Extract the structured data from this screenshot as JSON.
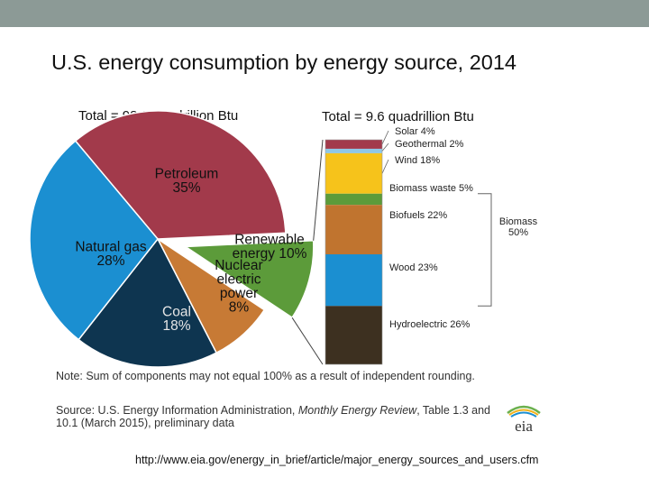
{
  "title": "U.S. energy consumption by energy source, 2014",
  "chart_data": [
    {
      "type": "pie",
      "title": "Total = 98.3 quadrillion Btu",
      "slices": [
        {
          "label_line1": "Petroleum",
          "label_line2": "",
          "label_line3": "",
          "pct_label": "35%",
          "value": 35,
          "color": "#a23a4b"
        },
        {
          "label_line1": "Renewable",
          "label_line2": "energy 10%",
          "label_line3": "",
          "pct_label": "",
          "value": 10,
          "color": "#5c9b3a",
          "exploded": true
        },
        {
          "label_line1": "Nuclear",
          "label_line2": "electric",
          "label_line3": "power",
          "pct_label": "8%",
          "value": 8,
          "color": "#c77a35"
        },
        {
          "label_line1": "Coal",
          "label_line2": "",
          "label_line3": "",
          "pct_label": "18%",
          "value": 18,
          "color": "#0e3550"
        },
        {
          "label_line1": "Natural gas",
          "label_line2": "",
          "label_line3": "",
          "pct_label": "28%",
          "value": 28,
          "color": "#1b8fd1"
        }
      ]
    },
    {
      "type": "bar",
      "stacked": true,
      "title": "Total = 9.6 quadrillion Btu",
      "segments": [
        {
          "label": "Solar 4%",
          "value": 4,
          "color": "#a23a4b"
        },
        {
          "label": "Geothermal 2%",
          "value": 2,
          "color": "#8fc7e6"
        },
        {
          "label": "Wind 18%",
          "value": 18,
          "color": "#f6c31b"
        },
        {
          "label": "Biomass waste 5%",
          "value": 5,
          "color": "#5c9b3a"
        },
        {
          "label": "Biofuels 22%",
          "value": 22,
          "color": "#c0742f"
        },
        {
          "label": "Wood 23%",
          "value": 23,
          "color": "#1b8fd1"
        },
        {
          "label": "Hydroelectric 26%",
          "value": 26,
          "color": "#3d3020"
        }
      ],
      "bracket": {
        "label_line1": "Biomass",
        "label_line2": "50%"
      }
    }
  ],
  "note": "Note: Sum of components may not equal 100% as a result  of independent rounding.",
  "source_prefix": "Source: U.S. Energy Information Administration, ",
  "source_italic": "Monthly Energy Review",
  "source_suffix": ", Table 1.3 and 10.1 (March 2015), preliminary data",
  "logo_text": "eia",
  "url": "http://www.eia.gov/energy_in_brief/article/major_energy_sources_and_users.cfm"
}
